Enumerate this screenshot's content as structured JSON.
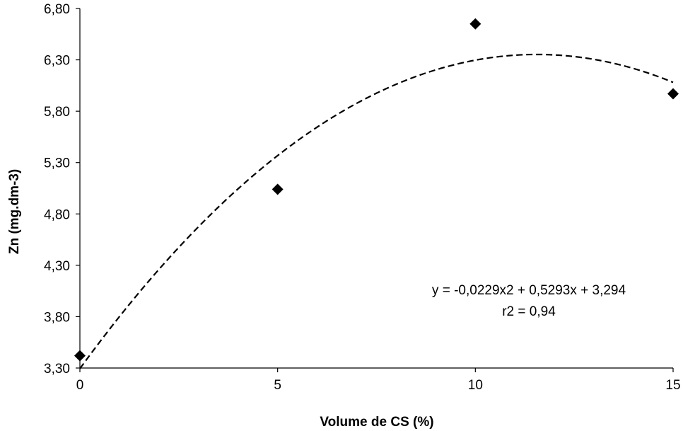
{
  "chart_data": {
    "type": "scatter",
    "xlabel": "Volume de CS (%)",
    "ylabel": "Zn (mg.dm-3)",
    "xlim": [
      0,
      15
    ],
    "ylim": [
      3.3,
      6.8
    ],
    "x_ticks": [
      0,
      5,
      10,
      15
    ],
    "x_tick_labels": [
      "0",
      "5",
      "10",
      "15"
    ],
    "y_ticks": [
      3.3,
      3.8,
      4.3,
      4.8,
      5.3,
      5.8,
      6.3,
      6.8
    ],
    "y_tick_labels": [
      "3,30",
      "3,80",
      "4,30",
      "4,80",
      "5,30",
      "5,80",
      "6,30",
      "6,80"
    ],
    "grid": false,
    "series": [
      {
        "x": [
          0,
          5,
          10,
          15
        ],
        "y": [
          3.42,
          5.04,
          6.65,
          5.97
        ],
        "marker": "diamond",
        "color": "#000000"
      }
    ],
    "trendline": {
      "type": "polynomial",
      "coefficients": [
        -0.0229,
        0.5293,
        3.294
      ],
      "style": "dashed",
      "color": "#000000"
    },
    "annotations": {
      "equation": "y = -0,0229x2 + 0,5293x + 3,294",
      "r2": "r2 = 0,94"
    }
  }
}
